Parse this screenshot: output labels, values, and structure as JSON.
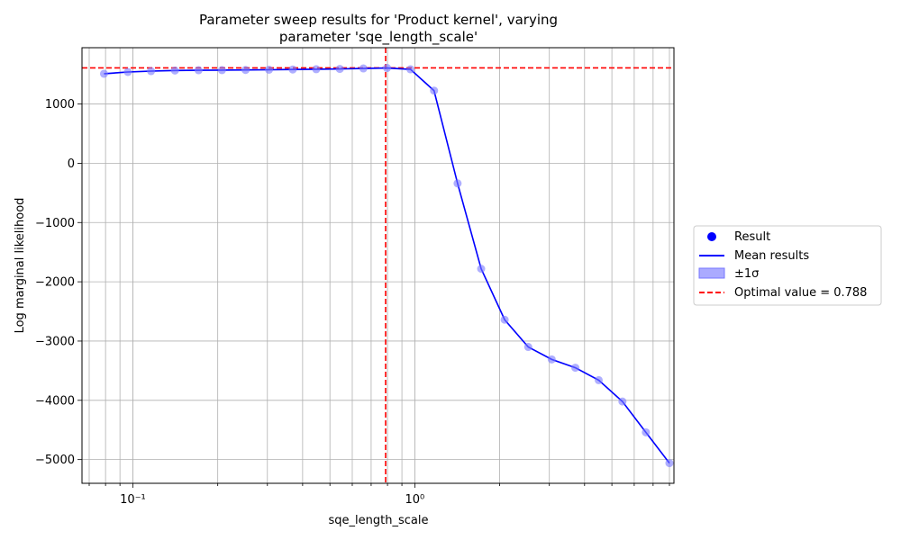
{
  "chart_data": {
    "type": "line",
    "title_line1": "Parameter sweep results for 'Product kernel', varying",
    "title_line2": "parameter 'sqe_length_scale'",
    "xlabel": "sqe_length_scale",
    "ylabel": "Log marginal likelihood",
    "x_scale": "log",
    "xlim": [
      0.066,
      8.3
    ],
    "ylim": [
      -5400,
      1950
    ],
    "grid": true,
    "x_tick_labels": [
      {
        "value": 0.1,
        "label": "10⁻¹"
      },
      {
        "value": 1,
        "label": "10⁰"
      }
    ],
    "y_ticks": [
      1000,
      0,
      -1000,
      -2000,
      -3000,
      -4000,
      -5000
    ],
    "y_tick_labels": [
      "1000",
      "0",
      "−1000",
      "−2000",
      "−3000",
      "−4000",
      "−5000"
    ],
    "x": [
      0.079,
      0.096,
      0.116,
      0.141,
      0.171,
      0.207,
      0.251,
      0.304,
      0.369,
      0.447,
      0.542,
      0.657,
      0.797,
      0.965,
      1.17,
      1.418,
      1.719,
      2.083,
      2.525,
      3.06,
      3.71,
      4.49,
      5.45,
      6.6,
      8.0
    ],
    "series": [
      {
        "name": "Mean results",
        "values": [
          1510,
          1540,
          1555,
          1565,
          1570,
          1572,
          1575,
          1578,
          1582,
          1587,
          1592,
          1600,
          1608,
          1585,
          1225,
          -340,
          -1780,
          -2640,
          -3100,
          -3310,
          -3450,
          -3660,
          -4020,
          -4540,
          -5060
        ]
      }
    ],
    "optimal_x": 0.788,
    "optimal_y": 1610,
    "colors": {
      "mean_line": "#0000ff",
      "result_marker": "#7a7aff",
      "band": "#aaaaff",
      "optimal": "#ff0000",
      "grid": "#b0b0b0"
    },
    "legend": {
      "placement": "right",
      "items": [
        {
          "label": "Result",
          "kind": "marker"
        },
        {
          "label": "Mean results",
          "kind": "line"
        },
        {
          "label": "±1σ",
          "kind": "band"
        },
        {
          "label": "Optimal value = 0.788",
          "kind": "dashed"
        }
      ]
    }
  }
}
